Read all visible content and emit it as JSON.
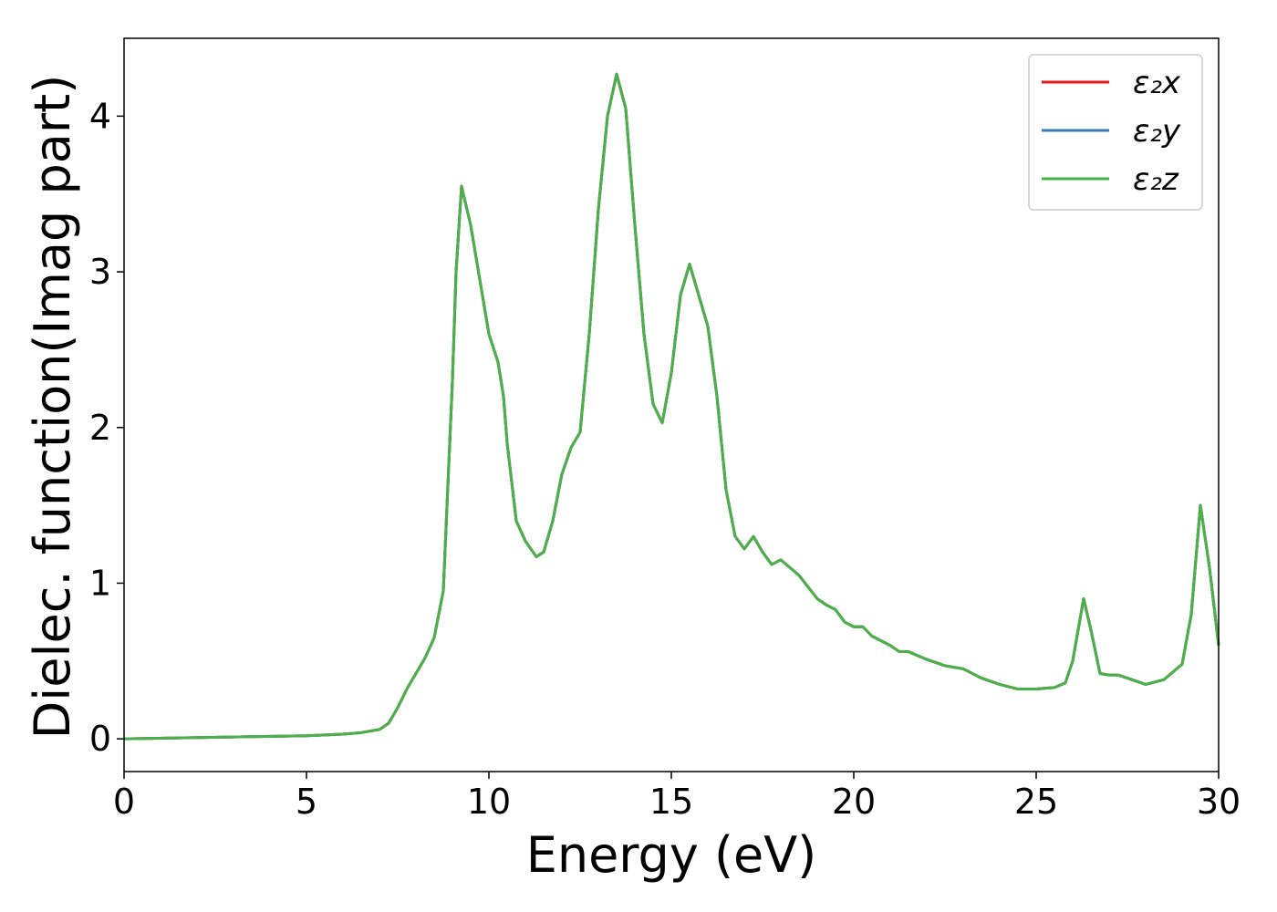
{
  "chart_data": {
    "type": "line",
    "x_label": "Energy (eV)",
    "y_label": "Dielec. function(Imag part)",
    "x": [
      0,
      5,
      6,
      6.5,
      7,
      7.25,
      7.5,
      7.75,
      8,
      8.25,
      8.5,
      8.75,
      9,
      9.1,
      9.25,
      9.5,
      9.75,
      10,
      10.25,
      10.4,
      10.5,
      10.75,
      11,
      11.3,
      11.5,
      11.75,
      12,
      12.25,
      12.5,
      12.75,
      13,
      13.25,
      13.5,
      13.75,
      14,
      14.25,
      14.5,
      14.75,
      15,
      15.25,
      15.5,
      15.75,
      16,
      16.25,
      16.5,
      16.75,
      17,
      17.25,
      17.5,
      17.75,
      18,
      18.5,
      19,
      19.25,
      19.5,
      19.75,
      20,
      20.25,
      20.5,
      21,
      21.25,
      21.5,
      22,
      22.5,
      23,
      23.5,
      24,
      24.5,
      25,
      25.5,
      25.8,
      26,
      26.3,
      26.5,
      26.75,
      27,
      27.25,
      27.5,
      28,
      28.5,
      29,
      29.25,
      29.5,
      29.75,
      30
    ],
    "series": [
      {
        "name": "ε₂x",
        "color": "#e41a1c",
        "values": [
          0,
          0.02,
          0.03,
          0.04,
          0.06,
          0.1,
          0.2,
          0.32,
          0.42,
          0.52,
          0.65,
          0.95,
          2.3,
          3.0,
          3.55,
          3.3,
          2.95,
          2.6,
          2.42,
          2.2,
          1.9,
          1.4,
          1.27,
          1.17,
          1.2,
          1.4,
          1.7,
          1.87,
          1.97,
          2.6,
          3.4,
          4.0,
          4.27,
          4.05,
          3.3,
          2.6,
          2.15,
          2.03,
          2.35,
          2.85,
          3.05,
          2.85,
          2.65,
          2.2,
          1.6,
          1.3,
          1.22,
          1.3,
          1.2,
          1.12,
          1.15,
          1.05,
          0.9,
          0.86,
          0.83,
          0.75,
          0.72,
          0.72,
          0.66,
          0.6,
          0.56,
          0.56,
          0.51,
          0.47,
          0.45,
          0.39,
          0.35,
          0.32,
          0.32,
          0.33,
          0.36,
          0.5,
          0.9,
          0.7,
          0.42,
          0.41,
          0.41,
          0.39,
          0.35,
          0.38,
          0.48,
          0.8,
          1.5,
          1.1,
          0.6
        ]
      },
      {
        "name": "ε₂y",
        "color": "#377eb8",
        "values": [
          0,
          0.02,
          0.03,
          0.04,
          0.06,
          0.1,
          0.2,
          0.32,
          0.42,
          0.52,
          0.65,
          0.95,
          2.3,
          3.0,
          3.55,
          3.3,
          2.95,
          2.6,
          2.42,
          2.2,
          1.9,
          1.4,
          1.27,
          1.17,
          1.2,
          1.4,
          1.7,
          1.87,
          1.97,
          2.6,
          3.4,
          4.0,
          4.27,
          4.05,
          3.3,
          2.6,
          2.15,
          2.03,
          2.35,
          2.85,
          3.05,
          2.85,
          2.65,
          2.2,
          1.6,
          1.3,
          1.22,
          1.3,
          1.2,
          1.12,
          1.15,
          1.05,
          0.9,
          0.86,
          0.83,
          0.75,
          0.72,
          0.72,
          0.66,
          0.6,
          0.56,
          0.56,
          0.51,
          0.47,
          0.45,
          0.39,
          0.35,
          0.32,
          0.32,
          0.33,
          0.36,
          0.5,
          0.9,
          0.7,
          0.42,
          0.41,
          0.41,
          0.39,
          0.35,
          0.38,
          0.48,
          0.8,
          1.5,
          1.1,
          0.6
        ]
      },
      {
        "name": "ε₂z",
        "color": "#4daf4a",
        "values": [
          0,
          0.02,
          0.03,
          0.04,
          0.06,
          0.1,
          0.2,
          0.32,
          0.42,
          0.52,
          0.65,
          0.95,
          2.3,
          3.0,
          3.55,
          3.3,
          2.95,
          2.6,
          2.42,
          2.2,
          1.9,
          1.4,
          1.27,
          1.17,
          1.2,
          1.4,
          1.7,
          1.87,
          1.97,
          2.6,
          3.4,
          4.0,
          4.27,
          4.05,
          3.3,
          2.6,
          2.15,
          2.03,
          2.35,
          2.85,
          3.05,
          2.85,
          2.65,
          2.2,
          1.6,
          1.3,
          1.22,
          1.3,
          1.2,
          1.12,
          1.15,
          1.05,
          0.9,
          0.86,
          0.83,
          0.75,
          0.72,
          0.72,
          0.66,
          0.6,
          0.56,
          0.56,
          0.51,
          0.47,
          0.45,
          0.39,
          0.35,
          0.32,
          0.32,
          0.33,
          0.36,
          0.5,
          0.9,
          0.7,
          0.42,
          0.41,
          0.41,
          0.39,
          0.35,
          0.38,
          0.48,
          0.8,
          1.5,
          1.1,
          0.6
        ]
      }
    ],
    "xlim": [
      0,
      30
    ],
    "xticks": [
      0,
      5,
      10,
      15,
      20,
      25,
      30
    ],
    "ylim": [
      -0.21,
      4.5
    ],
    "yticks": [
      0,
      1,
      2,
      3,
      4
    ],
    "grid": false,
    "legend": "upper right"
  }
}
